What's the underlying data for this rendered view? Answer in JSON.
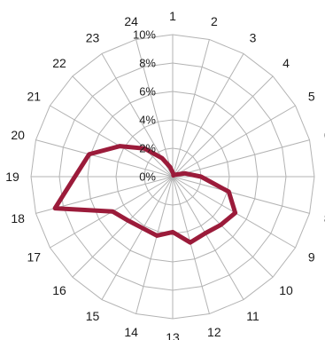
{
  "chart_data": {
    "type": "radar",
    "title": "",
    "categories": [
      "1",
      "2",
      "3",
      "4",
      "5",
      "6",
      "7",
      "8",
      "9",
      "10",
      "11",
      "12",
      "13",
      "14",
      "15",
      "16",
      "17",
      "18",
      "19",
      "20",
      "21",
      "22",
      "23",
      "24"
    ],
    "series": [
      {
        "values": [
          0.3,
          0.2,
          0.1,
          0.2,
          0.3,
          0.9,
          2.0,
          4.1,
          5.1,
          4.8,
          4.6,
          4.8,
          3.9,
          4.3,
          4.2,
          4.4,
          4.9,
          8.6,
          6.9,
          6.1,
          4.3,
          2.8,
          1.5,
          0.7
        ],
        "color": "#9b1b3a"
      }
    ],
    "r_ticks": [
      "0%",
      "2%",
      "4%",
      "6%",
      "8%",
      "10%"
    ],
    "rlim": [
      0,
      10
    ],
    "grid": true,
    "legend": "none"
  }
}
